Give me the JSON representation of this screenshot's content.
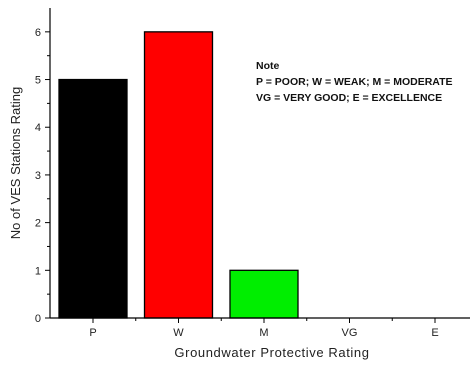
{
  "chart_data": {
    "type": "bar",
    "categories": [
      "P",
      "W",
      "M",
      "VG",
      "E"
    ],
    "values": [
      5,
      6,
      1,
      0,
      0
    ],
    "colors": [
      "#000000",
      "#ff0000",
      "#00ee00",
      "#ffffff",
      "#ffffff"
    ],
    "xlabel": "Groundwater Protective Rating",
    "ylabel": "No of VES Stations Rating",
    "ylim": [
      0,
      6.5
    ],
    "yticks": [
      0,
      1,
      2,
      3,
      4,
      5,
      6
    ],
    "grid": false,
    "annotations": {
      "title": "Note",
      "lines": [
        "P = POOR; W = WEAK; M = MODERATE",
        "VG = VERY GOOD; E = EXCELLENCE"
      ]
    }
  }
}
